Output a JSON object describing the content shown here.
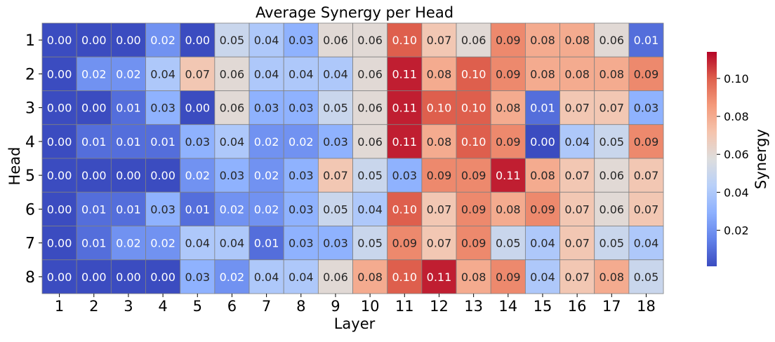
{
  "chart_data": {
    "type": "heatmap",
    "title": "Average Synergy per Head",
    "xlabel": "Layer",
    "ylabel": "Head",
    "x_categories": [
      "1",
      "2",
      "3",
      "4",
      "5",
      "6",
      "7",
      "8",
      "9",
      "10",
      "11",
      "12",
      "13",
      "14",
      "15",
      "16",
      "17",
      "18"
    ],
    "y_categories": [
      "1",
      "2",
      "3",
      "4",
      "5",
      "6",
      "7",
      "8"
    ],
    "values": [
      [
        0.0,
        0.0,
        0.0,
        0.02,
        0.0,
        0.05,
        0.04,
        0.03,
        0.06,
        0.06,
        0.1,
        0.07,
        0.06,
        0.09,
        0.08,
        0.08,
        0.06,
        0.01
      ],
      [
        0.0,
        0.02,
        0.02,
        0.04,
        0.07,
        0.06,
        0.04,
        0.04,
        0.04,
        0.06,
        0.11,
        0.08,
        0.1,
        0.09,
        0.08,
        0.08,
        0.08,
        0.09
      ],
      [
        0.0,
        0.0,
        0.01,
        0.03,
        0.0,
        0.06,
        0.03,
        0.03,
        0.05,
        0.06,
        0.11,
        0.1,
        0.1,
        0.08,
        0.01,
        0.07,
        0.07,
        0.03
      ],
      [
        0.0,
        0.01,
        0.01,
        0.01,
        0.03,
        0.04,
        0.02,
        0.02,
        0.03,
        0.06,
        0.11,
        0.08,
        0.1,
        0.09,
        0.0,
        0.04,
        0.05,
        0.09
      ],
      [
        0.0,
        0.0,
        0.0,
        0.0,
        0.02,
        0.03,
        0.02,
        0.03,
        0.07,
        0.05,
        0.03,
        0.09,
        0.09,
        0.11,
        0.08,
        0.07,
        0.06,
        0.07
      ],
      [
        0.0,
        0.01,
        0.01,
        0.03,
        0.01,
        0.02,
        0.02,
        0.03,
        0.05,
        0.04,
        0.1,
        0.07,
        0.09,
        0.08,
        0.09,
        0.07,
        0.06,
        0.07
      ],
      [
        0.0,
        0.01,
        0.02,
        0.02,
        0.04,
        0.04,
        0.01,
        0.03,
        0.03,
        0.05,
        0.09,
        0.07,
        0.09,
        0.05,
        0.04,
        0.07,
        0.05,
        0.04
      ],
      [
        0.0,
        0.0,
        0.0,
        0.0,
        0.03,
        0.02,
        0.04,
        0.04,
        0.06,
        0.08,
        0.1,
        0.11,
        0.08,
        0.09,
        0.04,
        0.07,
        0.08,
        0.05
      ]
    ],
    "colormap": "coolwarm",
    "color_range": [
      0.001,
      0.114
    ],
    "colorbar": {
      "label": "Synergy",
      "ticks": [
        0.02,
        0.04,
        0.06,
        0.08,
        0.1
      ],
      "tick_labels": [
        "0.02",
        "0.04",
        "0.06",
        "0.08",
        "0.10"
      ]
    },
    "cell_border_color": "#808080",
    "grid": false,
    "legend": "colorbar-right"
  }
}
